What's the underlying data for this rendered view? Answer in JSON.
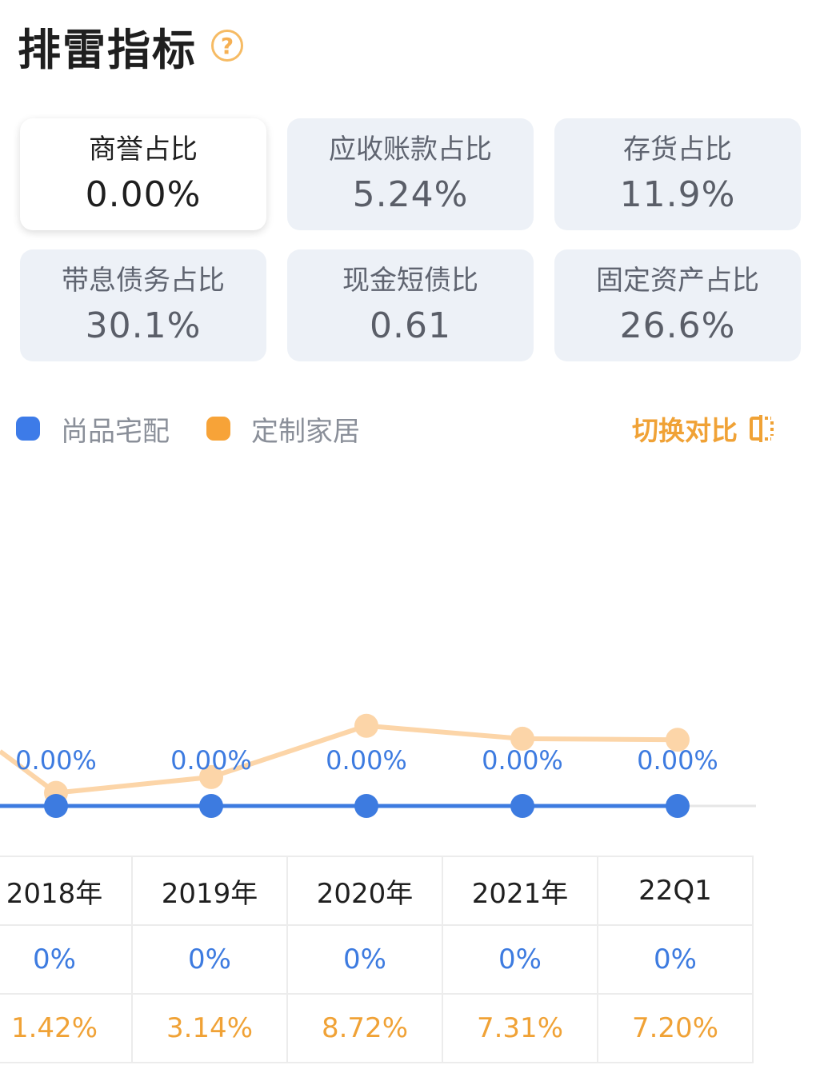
{
  "header": {
    "title": "排雷指标",
    "help_icon": "?"
  },
  "cards": [
    {
      "label": "商誉占比",
      "value": "0.00%",
      "active": true
    },
    {
      "label": "应收账款占比",
      "value": "5.24%",
      "active": false
    },
    {
      "label": "存货占比",
      "value": "11.9%",
      "active": false
    },
    {
      "label": "带息债务占比",
      "value": "30.1%",
      "active": false
    },
    {
      "label": "现金短债比",
      "value": "0.61",
      "active": false
    },
    {
      "label": "固定资产占比",
      "value": "26.6%",
      "active": false
    }
  ],
  "legend": [
    {
      "name": "尚品宅配",
      "color": "#3d7be8"
    },
    {
      "name": "定制家居",
      "color": "#f7a338"
    }
  ],
  "switch": {
    "label": "切换对比"
  },
  "colors": {
    "blue": "#3d7be0",
    "orange_line": "#fcd5a8",
    "accent": "#f0a236"
  },
  "chart_data": {
    "type": "line",
    "categories": [
      "2018年",
      "2019年",
      "2020年",
      "2021年",
      "22Q1"
    ],
    "series": [
      {
        "name": "尚品宅配",
        "values": [
          0,
          0,
          0,
          0,
          0
        ],
        "labels": [
          "0.00%",
          "0.00%",
          "0.00%",
          "0.00%",
          "0.00%"
        ]
      },
      {
        "name": "定制家居",
        "values": [
          1.42,
          3.14,
          8.72,
          7.31,
          7.2
        ]
      }
    ]
  },
  "table": {
    "years": [
      "2018年",
      "2019年",
      "2020年",
      "2021年",
      "22Q1"
    ],
    "blue_row": [
      "0%",
      "0%",
      "0%",
      "0%",
      "0%"
    ],
    "orange_row": [
      "1.42%",
      "3.14%",
      "8.72%",
      "7.31%",
      "7.20%"
    ]
  }
}
